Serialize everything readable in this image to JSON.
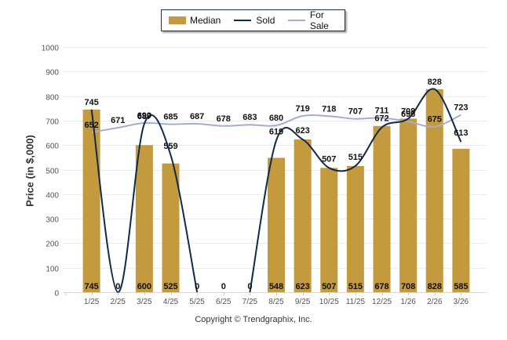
{
  "chart_data": {
    "type": "bar",
    "title": "",
    "xlabel": "",
    "ylabel": "Price (in $,000)",
    "ylim": [
      0,
      1000
    ],
    "yticks": [
      0,
      100,
      200,
      300,
      400,
      500,
      600,
      700,
      800,
      900,
      1000
    ],
    "grid": true,
    "legend_position": "top-center",
    "categories": [
      "1/25",
      "2/25",
      "3/25",
      "4/25",
      "5/25",
      "6/25",
      "7/25",
      "8/25",
      "9/25",
      "10/25",
      "11/25",
      "12/25",
      "1/26",
      "2/26",
      "3/26"
    ],
    "series": [
      {
        "name": "Median",
        "type": "bar",
        "color": "#C49A3F",
        "values": [
          745,
          0,
          600,
          525,
          0,
          0,
          0,
          548,
          623,
          507,
          515,
          678,
          708,
          828,
          585
        ]
      },
      {
        "name": "Sold",
        "type": "line",
        "color": "#0F2A4A",
        "values": [
          745,
          0,
          687,
          559,
          0,
          0,
          0,
          619,
          623,
          507,
          515,
          672,
          708,
          828,
          613
        ]
      },
      {
        "name": "For Sale",
        "type": "line",
        "color": "#A4AEC9",
        "values": [
          652,
          671,
          690,
          685,
          687,
          678,
          683,
          680,
          719,
          718,
          707,
          711,
          696,
          675,
          723
        ]
      }
    ]
  },
  "legend": {
    "median": "Median",
    "sold": "Sold",
    "for_sale": "For Sale"
  },
  "axis": {
    "ylabel": "Price (in $,000)"
  },
  "footer": {
    "copyright": "Copyright © Trendgraphix, Inc."
  }
}
